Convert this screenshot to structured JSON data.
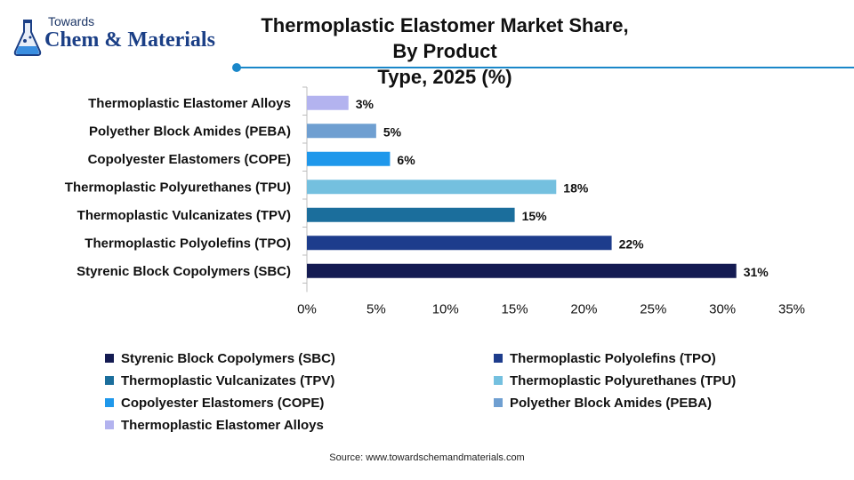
{
  "logo": {
    "small_text": "Towards",
    "big_text": "Chem & Materials"
  },
  "chart_data": {
    "type": "bar",
    "orientation": "horizontal",
    "title": "Thermoplastic Elastomer Market Share, By Product Type, 2025 (%)",
    "title_lines": [
      "Thermoplastic Elastomer Market Share, By Product",
      "Type, 2025 (%)"
    ],
    "xlabel": "",
    "ylabel": "",
    "xlim": [
      0,
      35
    ],
    "x_ticks": [
      "0%",
      "5%",
      "10%",
      "15%",
      "20%",
      "25%",
      "30%",
      "35%"
    ],
    "x_tick_values": [
      0,
      5,
      10,
      15,
      20,
      25,
      30,
      35
    ],
    "grid": false,
    "legend_position": "bottom",
    "categories": [
      "Thermoplastic Elastomer Alloys",
      "Polyether Block Amides (PEBA)",
      "Copolyester Elastomers (COPE)",
      "Thermoplastic Polyurethanes (TPU)",
      "Thermoplastic Vulcanizates (TPV)",
      "Thermoplastic Polyolefins (TPO)",
      "Styrenic Block Copolymers (SBC)"
    ],
    "values": [
      3,
      5,
      6,
      18,
      15,
      22,
      31
    ],
    "value_labels": [
      "3%",
      "5%",
      "6%",
      "18%",
      "15%",
      "22%",
      "31%"
    ],
    "colors": [
      "#b3b3ef",
      "#6f9fd1",
      "#1f98eb",
      "#74c0df",
      "#1b6e9c",
      "#1d3c8c",
      "#141b52"
    ]
  },
  "legend": [
    {
      "label": "Styrenic Block Copolymers (SBC)",
      "color": "#141b52"
    },
    {
      "label": "Thermoplastic Polyolefins (TPO)",
      "color": "#1d3c8c"
    },
    {
      "label": "Thermoplastic Vulcanizates (TPV)",
      "color": "#1b6e9c"
    },
    {
      "label": "Thermoplastic Polyurethanes (TPU)",
      "color": "#74c0df"
    },
    {
      "label": "Copolyester Elastomers (COPE)",
      "color": "#1f98eb"
    },
    {
      "label": "Polyether Block Amides (PEBA)",
      "color": "#6f9fd1"
    },
    {
      "label": "Thermoplastic Elastomer Alloys",
      "color": "#b3b3ef"
    }
  ],
  "source": "Source: www.towardschemandmaterials.com",
  "colors": {
    "accent": "#1a87c9",
    "logo_blue": "#1b3f86",
    "axis": "#bdbdbd"
  }
}
